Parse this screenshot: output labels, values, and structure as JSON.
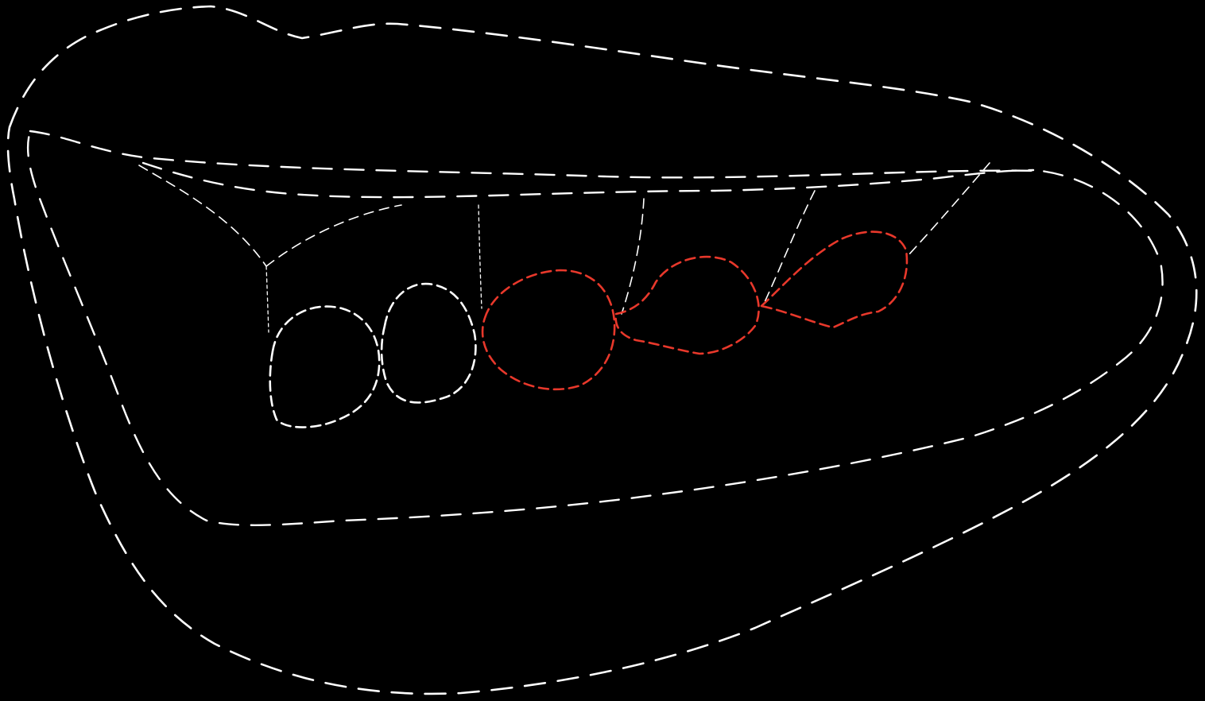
{
  "diagram": {
    "background": "#000000",
    "colors": {
      "outline": "#ffffff",
      "highlight": "#e8382b"
    },
    "elements": [
      "outer-outline",
      "inner-outline",
      "gum-line",
      "divider-lines",
      "shape-1",
      "shape-2",
      "shape-3-highlighted",
      "shape-4-highlighted",
      "shape-5-highlighted"
    ]
  }
}
